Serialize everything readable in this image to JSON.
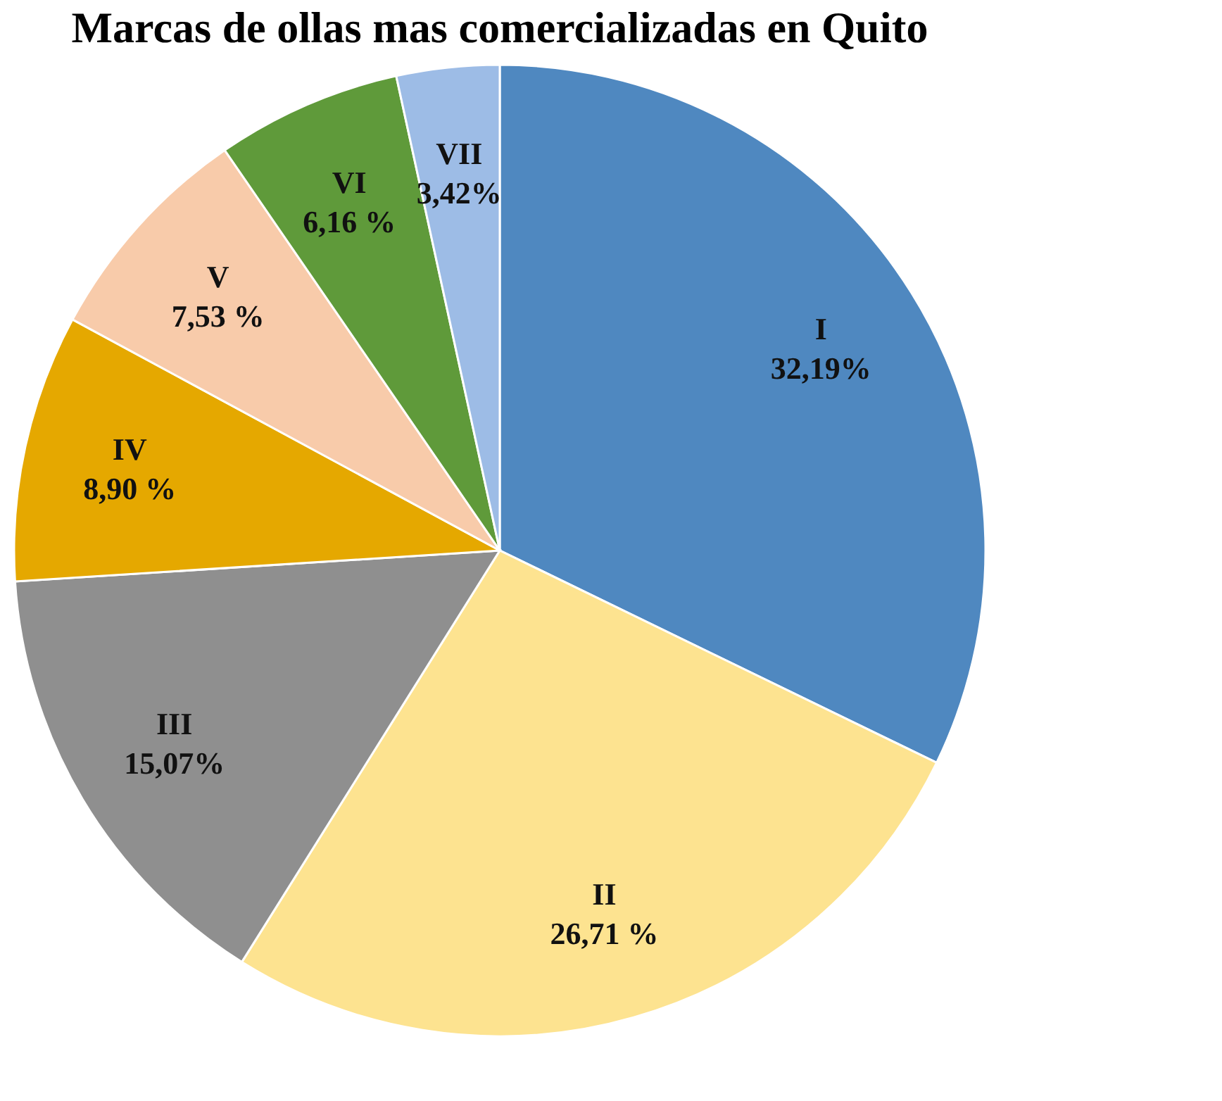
{
  "chart_data": {
    "type": "pie",
    "title": "Marcas de ollas mas comercializadas en Quito",
    "categories": [
      "I",
      "II",
      "III",
      "IV",
      "V",
      "VI",
      "VII"
    ],
    "values": [
      32.19,
      26.71,
      15.07,
      8.9,
      7.53,
      6.16,
      3.42
    ],
    "value_labels": [
      "32,19%",
      "26,71 %",
      "15,07%",
      "8,90 %",
      "7,53 %",
      "6,16 %",
      "3,42%"
    ],
    "colors": [
      "#4f88c0",
      "#fde390",
      "#8f8f8f",
      "#e5a800",
      "#f8cbaa",
      "#5f9a3a",
      "#9dbce6"
    ],
    "legend": false
  }
}
